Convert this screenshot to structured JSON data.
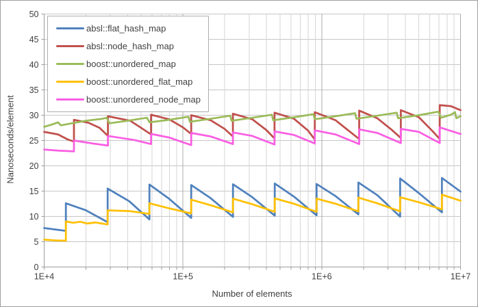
{
  "chart_data": {
    "type": "line",
    "title": "",
    "xlabel": "Number of elements",
    "ylabel": "Nanoseconds/element",
    "x_scale": "log10",
    "xlim": [
      10000,
      10000000
    ],
    "ylim": [
      0,
      50
    ],
    "grid": true,
    "legend_position": "top-left-inside",
    "x_ticks": [
      {
        "label": "1E+4",
        "value": 10000
      },
      {
        "label": "1E+5",
        "value": 100000
      },
      {
        "label": "1E+6",
        "value": 1000000
      },
      {
        "label": "1E+7",
        "value": 10000000
      }
    ],
    "x_minor_gridlines": "log decades 2-9",
    "y_ticks": [
      {
        "label": "0",
        "value": 0
      },
      {
        "label": "5",
        "value": 5
      },
      {
        "label": "10",
        "value": 10
      },
      {
        "label": "15",
        "value": 15
      },
      {
        "label": "20",
        "value": 20
      },
      {
        "label": "25",
        "value": 25
      },
      {
        "label": "30",
        "value": 30
      },
      {
        "label": "35",
        "value": 35
      },
      {
        "label": "40",
        "value": 40
      },
      {
        "label": "45",
        "value": 45
      },
      {
        "label": "50",
        "value": 50
      }
    ],
    "colors": {
      "grid_minor": "#d6d6d6",
      "grid_major": "#ababab",
      "grid_horizontal": "#c6c6c6",
      "axis": "#9b9b9b",
      "text": "#3f3f3f",
      "background": "#ffffff",
      "border": "#9e9e9e"
    },
    "series": [
      {
        "name": "absl::flat_hash_map",
        "color": "#4f81bd",
        "points": [
          [
            10000,
            7.7
          ],
          [
            11750,
            7.45
          ],
          [
            14336,
            7.15
          ],
          [
            14336,
            12.6
          ],
          [
            20000,
            11.2
          ],
          [
            28672,
            8.85
          ],
          [
            28672,
            15.5
          ],
          [
            41000,
            13.0
          ],
          [
            57344,
            9.4
          ],
          [
            57344,
            16.3
          ],
          [
            79400,
            13.5
          ],
          [
            114688,
            9.7
          ],
          [
            114688,
            16.2
          ],
          [
            158500,
            13.6
          ],
          [
            229376,
            9.9
          ],
          [
            229376,
            16.35
          ],
          [
            316000,
            13.8
          ],
          [
            458752,
            10.15
          ],
          [
            458752,
            16.5
          ],
          [
            631000,
            13.9
          ],
          [
            917504,
            10.2
          ],
          [
            917504,
            16.4
          ],
          [
            1259000,
            14.0
          ],
          [
            1835008,
            10.4
          ],
          [
            1835008,
            16.7
          ],
          [
            2512000,
            14.2
          ],
          [
            3670016,
            9.95
          ],
          [
            3670016,
            17.5
          ],
          [
            5012000,
            14.6
          ],
          [
            7340032,
            10.8
          ],
          [
            7340032,
            17.6
          ],
          [
            10000000,
            14.9
          ]
        ]
      },
      {
        "name": "absl::node_hash_map",
        "color": "#c0504d",
        "points": [
          [
            10000,
            26.7
          ],
          [
            12600,
            26.2
          ],
          [
            14800,
            25.2
          ],
          [
            16400,
            24.8
          ],
          [
            16400,
            29.1
          ],
          [
            20900,
            28.5
          ],
          [
            25100,
            27.5
          ],
          [
            28800,
            25.9
          ],
          [
            28800,
            29.8
          ],
          [
            41700,
            28.9
          ],
          [
            51300,
            27.3
          ],
          [
            58900,
            26.2
          ],
          [
            58900,
            30.1
          ],
          [
            79400,
            29.2
          ],
          [
            100000,
            27.6
          ],
          [
            114700,
            26.3
          ],
          [
            114700,
            30.0
          ],
          [
            158500,
            29.0
          ],
          [
            199500,
            27.3
          ],
          [
            229000,
            25.8
          ],
          [
            229000,
            30.3
          ],
          [
            316000,
            29.2
          ],
          [
            398000,
            27.1
          ],
          [
            457000,
            25.4
          ],
          [
            457000,
            30.5
          ],
          [
            631000,
            29.3
          ],
          [
            794000,
            27.0
          ],
          [
            891000,
            25.2
          ],
          [
            891000,
            30.6
          ],
          [
            1259000,
            29.0
          ],
          [
            1585000,
            26.8
          ],
          [
            1862000,
            25.3
          ],
          [
            1862000,
            30.9
          ],
          [
            2512000,
            29.4
          ],
          [
            3162000,
            27.2
          ],
          [
            3715000,
            25.5
          ],
          [
            3715000,
            31.0
          ],
          [
            5012000,
            29.6
          ],
          [
            6310000,
            26.8
          ],
          [
            7080000,
            25.3
          ],
          [
            7080000,
            32.0
          ],
          [
            8511000,
            31.8
          ],
          [
            10000000,
            31.0
          ]
        ]
      },
      {
        "name": "boost::unordered_map",
        "color": "#9bbb59",
        "points": [
          [
            10000,
            27.7
          ],
          [
            11500,
            28.2
          ],
          [
            12600,
            28.6
          ],
          [
            13200,
            28.0
          ],
          [
            15850,
            28.4
          ],
          [
            20000,
            28.9
          ],
          [
            26300,
            29.3
          ],
          [
            28200,
            29.5
          ],
          [
            29500,
            28.4
          ],
          [
            39800,
            28.9
          ],
          [
            55000,
            29.5
          ],
          [
            57500,
            28.6
          ],
          [
            79400,
            29.1
          ],
          [
            109600,
            29.7
          ],
          [
            112200,
            28.7
          ],
          [
            158500,
            29.3
          ],
          [
            218800,
            29.9
          ],
          [
            224000,
            28.9
          ],
          [
            316000,
            29.5
          ],
          [
            436500,
            30.1
          ],
          [
            447000,
            29.0
          ],
          [
            631000,
            29.6
          ],
          [
            871000,
            30.2
          ],
          [
            891000,
            29.2
          ],
          [
            1259000,
            29.8
          ],
          [
            1738000,
            30.4
          ],
          [
            1778000,
            29.3
          ],
          [
            2512000,
            29.9
          ],
          [
            3467000,
            30.5
          ],
          [
            3548000,
            29.4
          ],
          [
            5012000,
            30.0
          ],
          [
            6918000,
            30.7
          ],
          [
            7244000,
            29.5
          ],
          [
            8511000,
            30.1
          ],
          [
            9120000,
            30.6
          ],
          [
            9333000,
            29.4
          ],
          [
            10000000,
            29.8
          ]
        ]
      },
      {
        "name": "boost::unordered_flat_map",
        "color": "#ffc000",
        "points": [
          [
            10000,
            5.4
          ],
          [
            12000,
            5.25
          ],
          [
            14336,
            5.2
          ],
          [
            14336,
            9.0
          ],
          [
            16200,
            8.75
          ],
          [
            18200,
            8.95
          ],
          [
            20400,
            8.6
          ],
          [
            23400,
            8.8
          ],
          [
            28672,
            8.4
          ],
          [
            28672,
            11.2
          ],
          [
            41000,
            11.05
          ],
          [
            57344,
            10.5
          ],
          [
            57344,
            12.6
          ],
          [
            79400,
            11.6
          ],
          [
            114688,
            10.6
          ],
          [
            114688,
            13.3
          ],
          [
            158500,
            12.2
          ],
          [
            229376,
            10.8
          ],
          [
            229376,
            13.5
          ],
          [
            316000,
            12.4
          ],
          [
            458752,
            10.9
          ],
          [
            458752,
            13.55
          ],
          [
            631000,
            12.5
          ],
          [
            917504,
            10.9
          ],
          [
            917504,
            13.5
          ],
          [
            1259000,
            12.5
          ],
          [
            1835008,
            11.0
          ],
          [
            1835008,
            13.7
          ],
          [
            2512000,
            12.6
          ],
          [
            3670016,
            11.0
          ],
          [
            3670016,
            13.8
          ],
          [
            5012000,
            12.8
          ],
          [
            7340032,
            11.4
          ],
          [
            7340032,
            14.3
          ],
          [
            10000000,
            13.1
          ]
        ]
      },
      {
        "name": "boost::unordered_node_map",
        "color": "#fa5ee3",
        "points": [
          [
            10000,
            23.2
          ],
          [
            12600,
            23.0
          ],
          [
            16400,
            22.85
          ],
          [
            16400,
            25.0
          ],
          [
            22400,
            24.4
          ],
          [
            28800,
            24.0
          ],
          [
            28800,
            25.9
          ],
          [
            44700,
            25.1
          ],
          [
            58900,
            24.3
          ],
          [
            58900,
            26.3
          ],
          [
            79400,
            25.6
          ],
          [
            114700,
            24.1
          ],
          [
            114700,
            26.5
          ],
          [
            158500,
            25.8
          ],
          [
            229000,
            24.3
          ],
          [
            229000,
            26.6
          ],
          [
            316000,
            25.9
          ],
          [
            457000,
            24.2
          ],
          [
            457000,
            26.8
          ],
          [
            631000,
            26.1
          ],
          [
            891000,
            24.4
          ],
          [
            891000,
            27.0
          ],
          [
            1259000,
            26.2
          ],
          [
            1862000,
            24.3
          ],
          [
            1862000,
            27.2
          ],
          [
            2512000,
            26.5
          ],
          [
            3715000,
            24.5
          ],
          [
            3715000,
            27.3
          ],
          [
            5012000,
            26.7
          ],
          [
            7080000,
            24.5
          ],
          [
            7080000,
            27.6
          ],
          [
            10000000,
            26.3
          ]
        ]
      }
    ]
  }
}
